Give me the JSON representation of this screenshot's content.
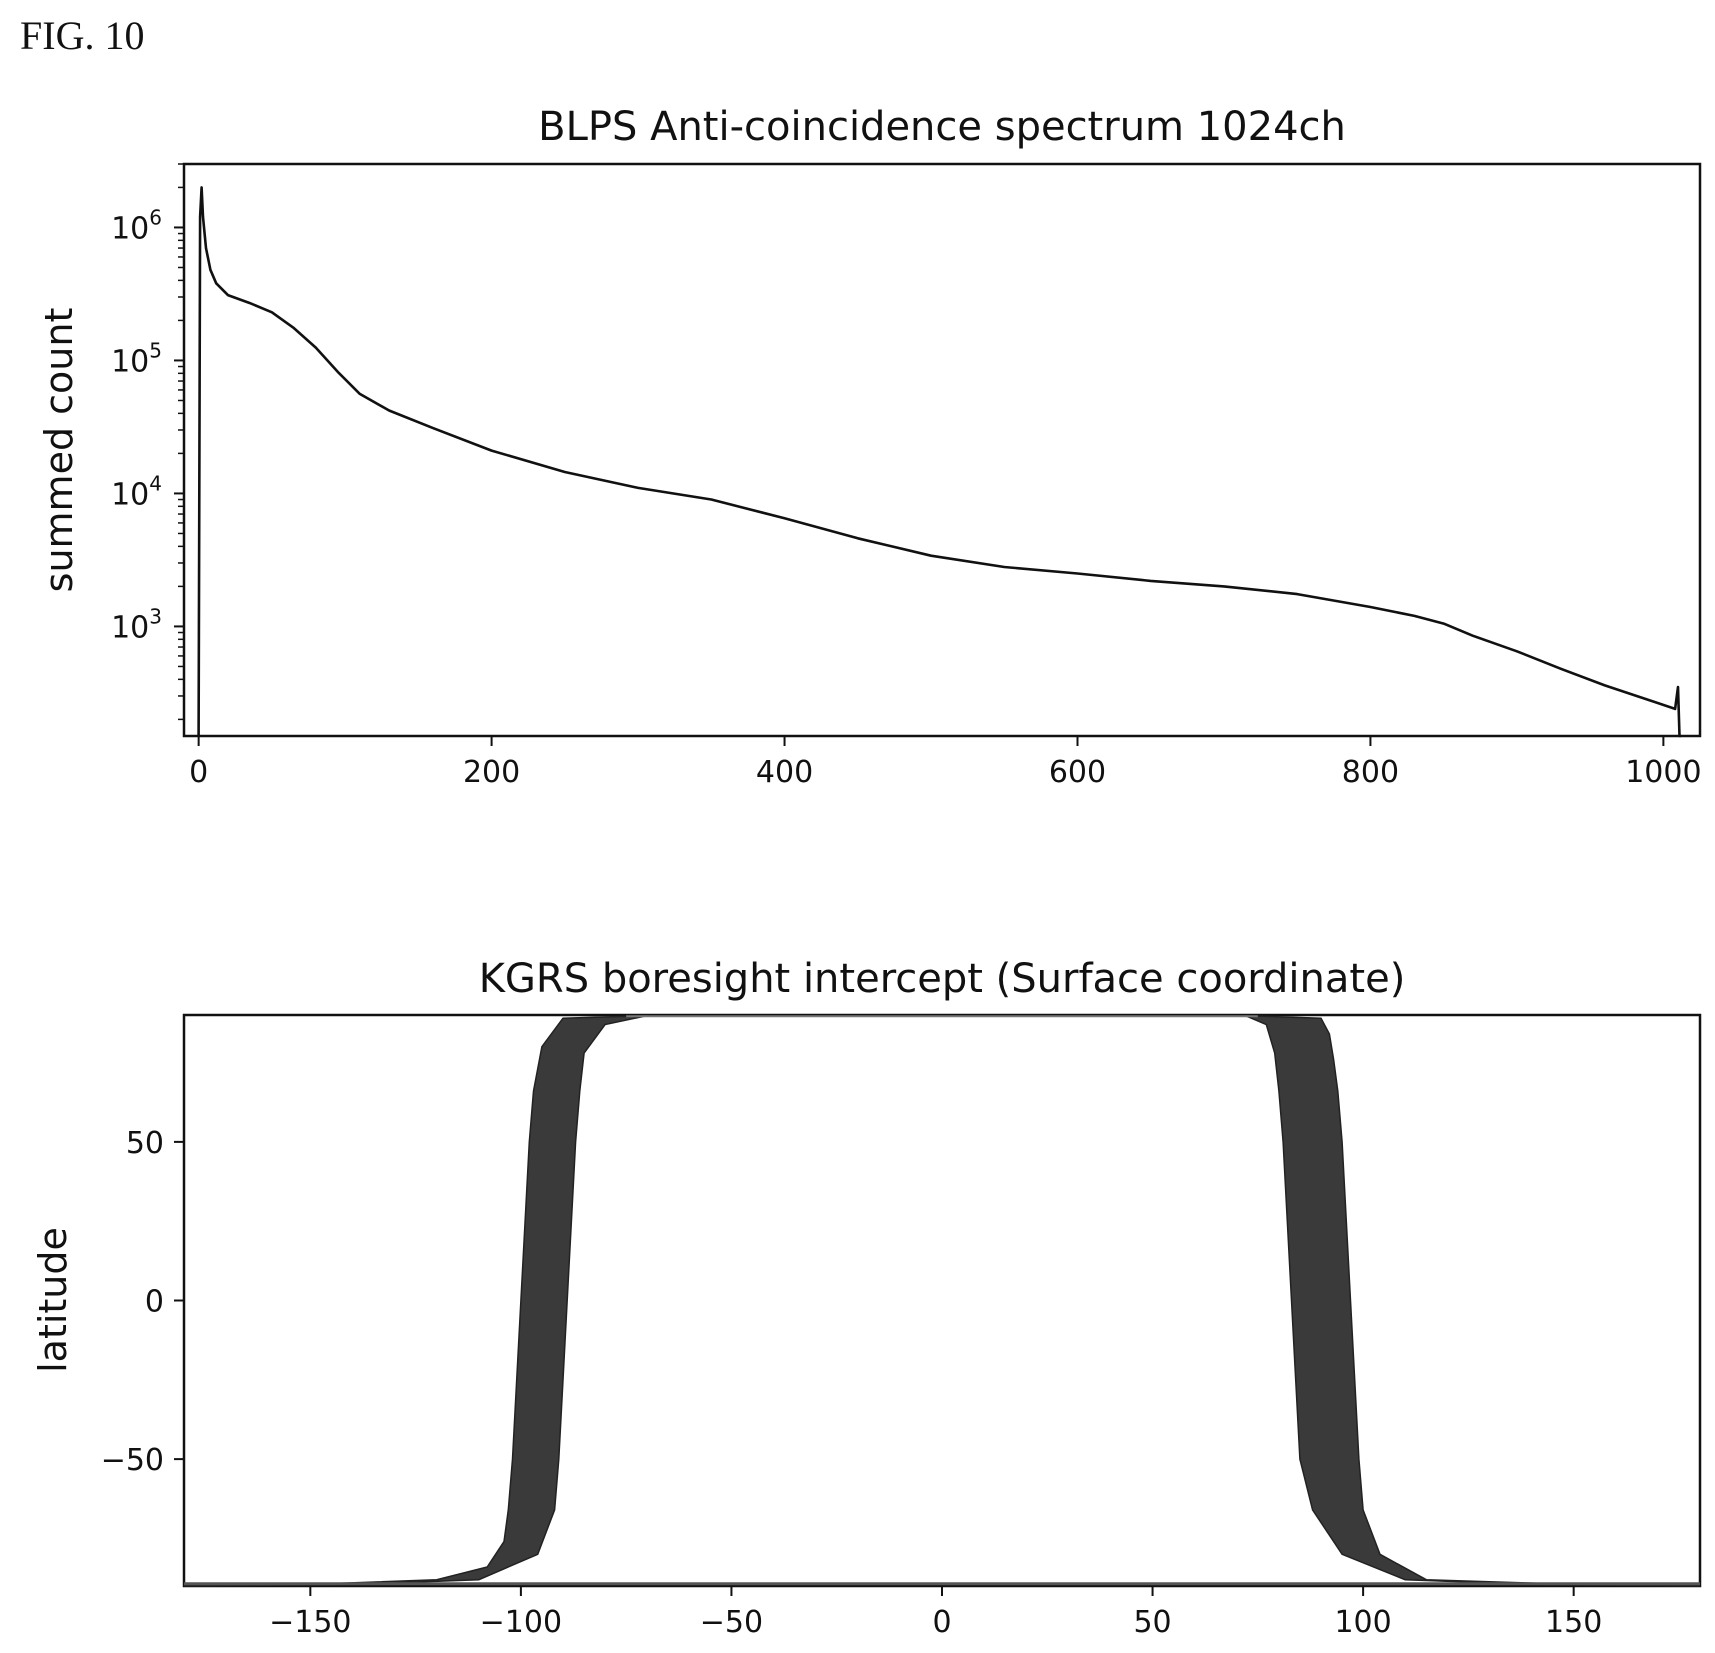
{
  "figure": {
    "label": "FIG. 10"
  },
  "chart_data": [
    {
      "type": "line",
      "title": "BLPS Anti-coincidence spectrum 1024ch",
      "xlabel": "",
      "ylabel": "summed count",
      "yscale": "log",
      "xlim": [
        -10,
        1025
      ],
      "ylim": [
        150,
        3000000
      ],
      "grid": false,
      "x_ticks": [
        0,
        200,
        400,
        600,
        800,
        1000
      ],
      "x_tick_labels": [
        "0",
        "200",
        "400",
        "600",
        "800",
        "1000"
      ],
      "y_ticks": [
        1000,
        10000,
        100000,
        1000000
      ],
      "y_tick_labels": [
        "10^3",
        "10^4",
        "10^5",
        "10^6"
      ],
      "series": [
        {
          "x": [
            0,
            1,
            2,
            3,
            5,
            8,
            12,
            20,
            35,
            50,
            65,
            80,
            95,
            110,
            130,
            160,
            200,
            250,
            300,
            350,
            400,
            450,
            500,
            550,
            600,
            650,
            700,
            750,
            800,
            830,
            850,
            870,
            900,
            930,
            960,
            990,
            1008,
            1010,
            1011,
            1012
          ],
          "y": [
            150,
            1200000,
            2000000,
            1200000,
            700000,
            480000,
            380000,
            310000,
            270000,
            230000,
            175000,
            125000,
            82000,
            56000,
            42000,
            31000,
            21000,
            14500,
            11000,
            9000,
            6500,
            4600,
            3400,
            2800,
            2500,
            2200,
            2000,
            1750,
            1400,
            1200,
            1050,
            850,
            650,
            480,
            360,
            280,
            240,
            350,
            150,
            150
          ]
        }
      ]
    },
    {
      "type": "area",
      "title": "KGRS boresight intercept (Surface coordinate)",
      "xlabel": "",
      "ylabel": "latitude",
      "xlim": [
        -180,
        180
      ],
      "ylim": [
        -90,
        90
      ],
      "grid": false,
      "x_ticks": [
        -150,
        -100,
        -50,
        0,
        50,
        100,
        150
      ],
      "x_tick_labels": [
        "−150",
        "−100",
        "−50",
        "0",
        "50",
        "100",
        "150"
      ],
      "y_ticks": [
        -50,
        0,
        50
      ],
      "y_tick_labels": [
        "−50",
        "0",
        "50"
      ],
      "bands": [
        {
          "left_edge": {
            "x": [
              -180,
              -150,
              -120,
              -108,
              -104,
              -103,
              -102,
              -101,
              -100,
              -99,
              -98,
              -97,
              -95,
              -90
            ],
            "y": [
              -90,
              -89.5,
              -88,
              -84,
              -76,
              -66,
              -50,
              -25,
              0,
              25,
              50,
              66,
              80,
              89
            ]
          },
          "right_edge": {
            "x": [
              -180,
              -140,
              -110,
              -96,
              -92,
              -91,
              -90,
              -89,
              -88,
              -87,
              -86,
              -85,
              -80,
              -70
            ],
            "y": [
              -90,
              -89.5,
              -88,
              -80,
              -66,
              -50,
              -25,
              0,
              25,
              50,
              66,
              78,
              87,
              89.8
            ]
          }
        },
        {
          "left_edge": {
            "x": [
              72,
              77,
              79,
              80,
              81,
              82,
              83,
              84,
              85,
              88,
              95,
              110,
              140,
              180
            ],
            "y": [
              89.8,
              87,
              78,
              66,
              50,
              25,
              0,
              -25,
              -50,
              -66,
              -80,
              -88,
              -89.5,
              -90
            ]
          },
          "right_edge": {
            "x": [
              90,
              92,
              93,
              94,
              95,
              96,
              97,
              98,
              99,
              100,
              104,
              115,
              150,
              180
            ],
            "y": [
              89,
              84,
              76,
              66,
              50,
              25,
              0,
              -25,
              -50,
              -66,
              -80,
              -88,
              -89.5,
              -90
            ]
          }
        }
      ]
    }
  ]
}
